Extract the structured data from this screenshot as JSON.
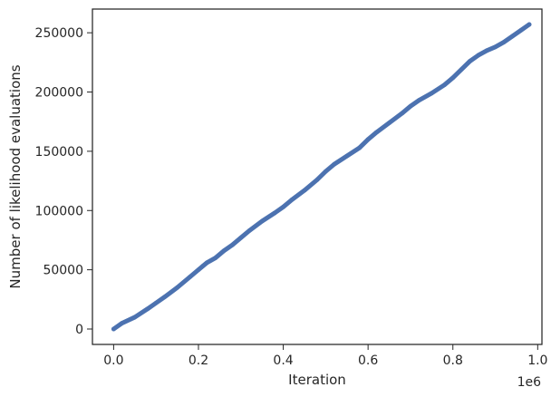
{
  "chart_data": {
    "type": "line",
    "title": "",
    "xlabel": "Iteration",
    "ylabel": "Number of likelihood evaluations",
    "x_offset_label": "1e6",
    "xlim": [
      -0.05,
      1.01
    ],
    "ylim": [
      -13000,
      270000
    ],
    "xticks": [
      {
        "value": 0.0,
        "label": "0.0"
      },
      {
        "value": 0.2,
        "label": "0.2"
      },
      {
        "value": 0.4,
        "label": "0.4"
      },
      {
        "value": 0.6,
        "label": "0.6"
      },
      {
        "value": 0.8,
        "label": "0.8"
      },
      {
        "value": 1.0,
        "label": "1.0"
      }
    ],
    "yticks": [
      {
        "value": 0,
        "label": "0"
      },
      {
        "value": 50000,
        "label": "50000"
      },
      {
        "value": 100000,
        "label": "100000"
      },
      {
        "value": 150000,
        "label": "150000"
      },
      {
        "value": 200000,
        "label": "200000"
      },
      {
        "value": 250000,
        "label": "250000"
      }
    ],
    "grid": false,
    "legend": "none",
    "color": "#4c72b0",
    "series": [
      {
        "x": [
          0,
          0.02,
          0.05,
          0.08,
          0.1,
          0.12,
          0.15,
          0.18,
          0.2,
          0.21,
          0.22,
          0.24,
          0.26,
          0.28,
          0.3,
          0.32,
          0.35,
          0.38,
          0.4,
          0.42,
          0.45,
          0.48,
          0.5,
          0.52,
          0.55,
          0.58,
          0.6,
          0.62,
          0.65,
          0.68,
          0.7,
          0.72,
          0.75,
          0.78,
          0.8,
          0.82,
          0.84,
          0.86,
          0.88,
          0.9,
          0.92,
          0.94,
          0.96,
          0.98
        ],
        "y": [
          0,
          5000,
          10000,
          17000,
          22000,
          27000,
          35000,
          44000,
          50000,
          53000,
          56000,
          60000,
          66000,
          71000,
          77000,
          83000,
          91000,
          98000,
          103000,
          109000,
          117000,
          126000,
          133000,
          139000,
          146000,
          153000,
          160000,
          166000,
          174000,
          182000,
          188000,
          193000,
          199000,
          206000,
          212000,
          219000,
          226000,
          231000,
          235000,
          238000,
          242000,
          247000,
          252000,
          257000
        ]
      }
    ]
  }
}
